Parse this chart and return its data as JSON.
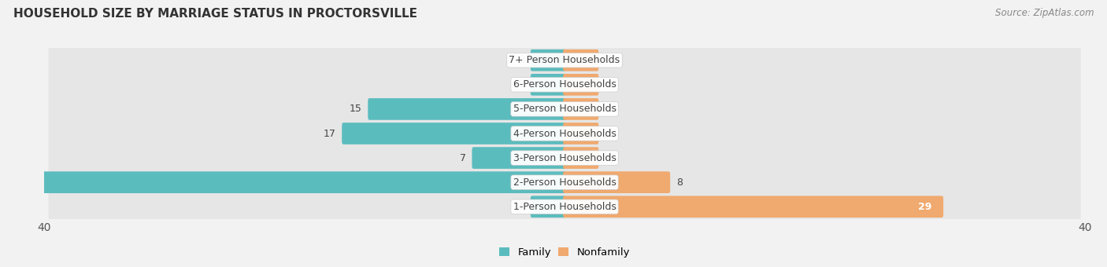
{
  "title": "HOUSEHOLD SIZE BY MARRIAGE STATUS IN PROCTORSVILLE",
  "source": "Source: ZipAtlas.com",
  "categories": [
    "7+ Person Households",
    "6-Person Households",
    "5-Person Households",
    "4-Person Households",
    "3-Person Households",
    "2-Person Households",
    "1-Person Households"
  ],
  "family_values": [
    0,
    0,
    15,
    17,
    7,
    40,
    0
  ],
  "nonfamily_values": [
    0,
    0,
    0,
    0,
    0,
    8,
    29
  ],
  "family_color": "#5bbcbe",
  "nonfamily_color": "#f0a96e",
  "stub_value": 2.5,
  "xlim": 40,
  "background_color": "#f2f2f2",
  "bar_bg_color": "#e4e4e4",
  "row_bg_color": "#e8e8e8",
  "label_font_size": 9,
  "title_font_size": 11,
  "source_font_size": 8.5,
  "tick_font_size": 10
}
